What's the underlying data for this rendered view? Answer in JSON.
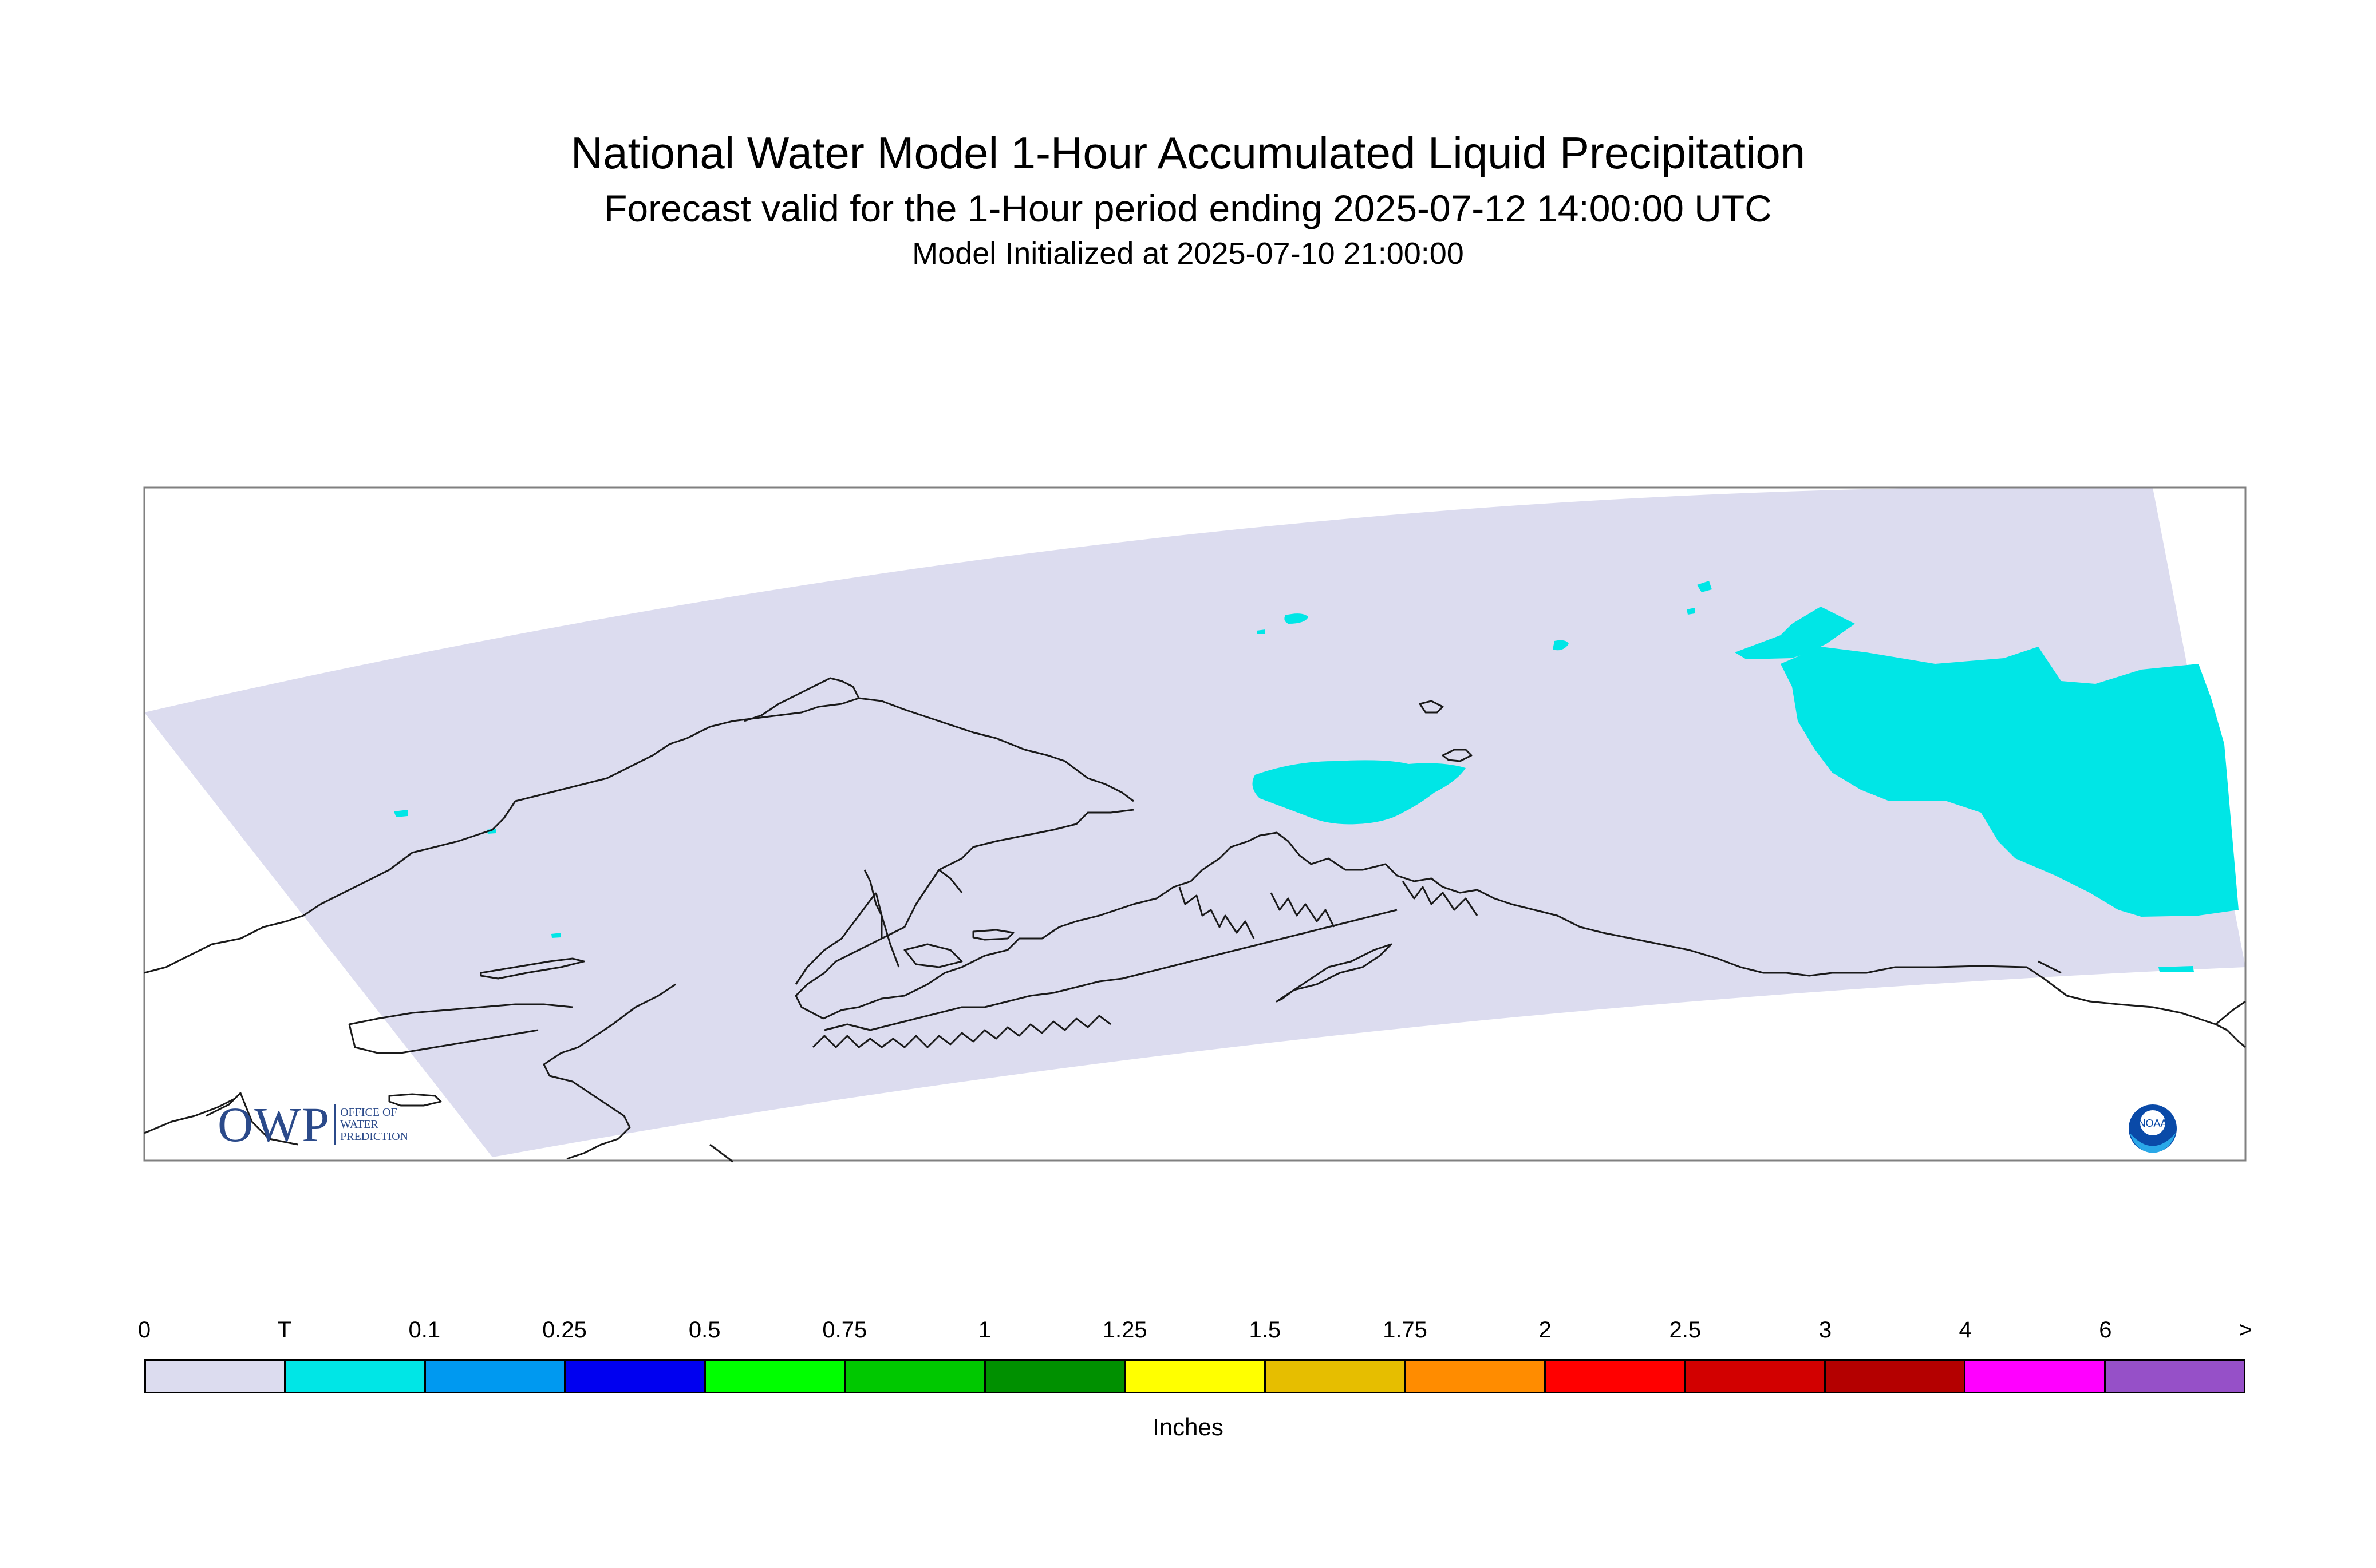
{
  "header": {
    "title": "National Water Model 1-Hour Accumulated Liquid Precipitation",
    "subtitle": "Forecast valid for the 1-Hour period ending 2025-07-12 14:00:00 UTC",
    "init": "Model Initialized at 2025-07-10 21:00:00"
  },
  "logos": {
    "owp": {
      "abbr": "OWP",
      "line1": "OFFICE OF",
      "line2": "WATER",
      "line3": "PREDICTION"
    },
    "noaa": {
      "text": "NOAA"
    }
  },
  "colors": {
    "domain": "#dcdcef",
    "trace": "#00e6e6",
    "coastline": "#1a1a1a",
    "frame": "#808080"
  },
  "legend": {
    "units": "Inches",
    "ticks": [
      "0",
      "T",
      "0.1",
      "0.25",
      "0.5",
      "0.75",
      "1",
      "1.25",
      "1.5",
      "1.75",
      "2",
      "2.5",
      "3",
      "4",
      "6",
      ">"
    ],
    "colors": [
      "#dcdcef",
      "#00e6e6",
      "#0099f0",
      "#0000f0",
      "#00ff00",
      "#00c800",
      "#009000",
      "#ffff00",
      "#e6be00",
      "#ff8c00",
      "#ff0000",
      "#d20000",
      "#b40000",
      "#ff00ff",
      "#9650c8"
    ]
  }
}
